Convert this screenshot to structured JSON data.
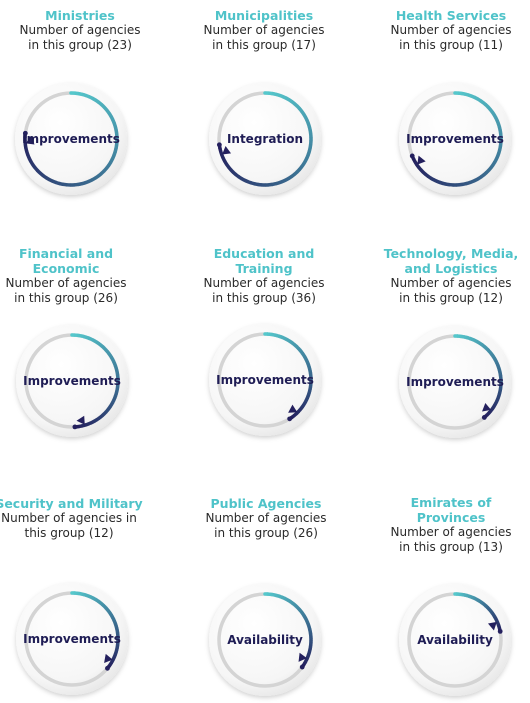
{
  "colors": {
    "title": "#4fc3c9",
    "text": "#2a2a2a",
    "arc_start": "#55c8cc",
    "arc_end": "#24205e",
    "track": "#d4d4d4",
    "label": "#1f1d55"
  },
  "groups": [
    {
      "title_lines": [
        "Ministries"
      ],
      "desc_lines": [
        "Number of agencies",
        "in this group (23)"
      ],
      "label": "Improvements",
      "progress": 0.77
    },
    {
      "title_lines": [
        "Municipalities"
      ],
      "desc_lines": [
        "Number of agencies",
        "in this group (17)"
      ],
      "label": "Integration",
      "progress": 0.73
    },
    {
      "title_lines": [
        "Health Services"
      ],
      "desc_lines": [
        "Number of agencies",
        "in this group (11)"
      ],
      "label": "Improvements",
      "progress": 0.69
    },
    {
      "title_lines": [
        "Financial and",
        "Economic"
      ],
      "desc_lines": [
        "Number of agencies",
        "in this group (26)"
      ],
      "label": "Improvements",
      "progress": 0.49
    },
    {
      "title_lines": [
        "Education and",
        "Training"
      ],
      "desc_lines": [
        "Number of agencies",
        "in this group (36)"
      ],
      "label": "Improvements",
      "progress": 0.41
    },
    {
      "title_lines": [
        "Technology, Media,",
        "and Logistics"
      ],
      "desc_lines": [
        "Number of agencies",
        "in this group (12)"
      ],
      "label": "Improvements",
      "progress": 0.39
    },
    {
      "title_lines": [
        "Security and Military"
      ],
      "desc_lines": [
        "Number of agencies in",
        "this group (12)"
      ],
      "label": "Improvements",
      "progress": 0.36
    },
    {
      "title_lines": [
        "Public Agencies"
      ],
      "desc_lines": [
        "Number of agencies",
        "in this group (26)"
      ],
      "label": "Availability",
      "progress": 0.35
    },
    {
      "title_lines": [
        "Emirates of",
        "Provinces"
      ],
      "desc_lines": [
        "Number of agencies",
        "in this group (13)"
      ],
      "label": "Availability",
      "progress": 0.22
    }
  ]
}
